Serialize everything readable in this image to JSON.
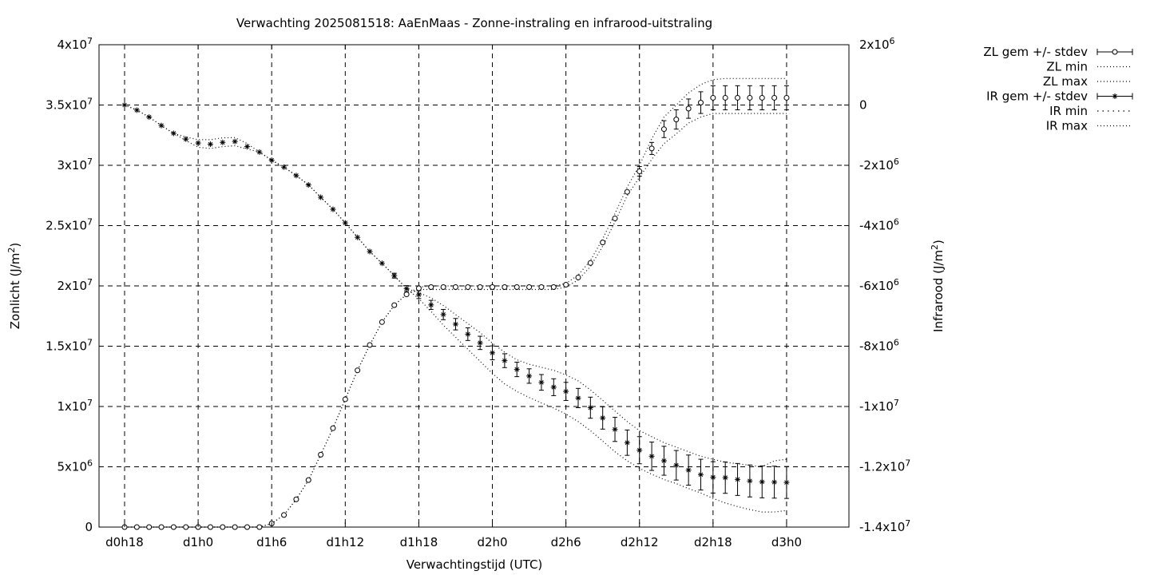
{
  "chart_data": {
    "type": "line",
    "title": "Verwachting 2025081518: AaEnMaas - Zonne-instraling en infrarood-uitstraling",
    "xlabel": "Verwachtingstijd (UTC)",
    "ylabel": "Zonlicht (J/m²)",
    "y2label": "Infrarood (J/m²)",
    "xlim": [
      0,
      57
    ],
    "ylim": [
      0,
      40000000
    ],
    "y2lim": [
      -14000000,
      2000000
    ],
    "x_ticks": [
      {
        "x": 0,
        "label": "d0h18"
      },
      {
        "x": 6,
        "label": "d1h0"
      },
      {
        "x": 12,
        "label": "d1h6"
      },
      {
        "x": 18,
        "label": "d1h12"
      },
      {
        "x": 24,
        "label": "d1h18"
      },
      {
        "x": 30,
        "label": "d2h0"
      },
      {
        "x": 36,
        "label": "d2h6"
      },
      {
        "x": 42,
        "label": "d2h12"
      },
      {
        "x": 48,
        "label": "d2h18"
      },
      {
        "x": 54,
        "label": "d3h0"
      }
    ],
    "y_ticks": [
      {
        "v": 0,
        "base": "0",
        "exp": ""
      },
      {
        "v": 5000000,
        "base": "5x10",
        "exp": "6"
      },
      {
        "v": 10000000,
        "base": "1x10",
        "exp": "7"
      },
      {
        "v": 15000000,
        "base": "1.5x10",
        "exp": "7"
      },
      {
        "v": 20000000,
        "base": "2x10",
        "exp": "7"
      },
      {
        "v": 25000000,
        "base": "2.5x10",
        "exp": "7"
      },
      {
        "v": 30000000,
        "base": "3x10",
        "exp": "7"
      },
      {
        "v": 35000000,
        "base": "3.5x10",
        "exp": "7"
      },
      {
        "v": 40000000,
        "base": "4x10",
        "exp": "7"
      }
    ],
    "y2_ticks": [
      {
        "v": -14000000,
        "base": "-1.4x10",
        "exp": "7"
      },
      {
        "v": -12000000,
        "base": "-1.2x10",
        "exp": "7"
      },
      {
        "v": -10000000,
        "base": "-1x10",
        "exp": "7"
      },
      {
        "v": -8000000,
        "base": "-8x10",
        "exp": "6"
      },
      {
        "v": -6000000,
        "base": "-6x10",
        "exp": "6"
      },
      {
        "v": -4000000,
        "base": "-4x10",
        "exp": "6"
      },
      {
        "v": -2000000,
        "base": "-2x10",
        "exp": "6"
      },
      {
        "v": 0,
        "base": "0",
        "exp": ""
      },
      {
        "v": 2000000,
        "base": "2x10",
        "exp": "6"
      }
    ],
    "grid": true,
    "legend_position": "outside top-right",
    "legend": [
      {
        "label": "ZL gem +/- stdev",
        "kind": "errbar-circle"
      },
      {
        "label": "ZL min",
        "kind": "dotted"
      },
      {
        "label": "ZL max",
        "kind": "dotted"
      },
      {
        "label": "IR gem +/- stdev",
        "kind": "errbar-star"
      },
      {
        "label": "IR min",
        "kind": "dotted-coarse"
      },
      {
        "label": "IR max",
        "kind": "dotted"
      }
    ],
    "x": [
      0,
      1,
      2,
      3,
      4,
      5,
      6,
      7,
      8,
      9,
      10,
      11,
      12,
      13,
      14,
      15,
      16,
      17,
      18,
      19,
      20,
      21,
      22,
      23,
      24,
      25,
      26,
      27,
      28,
      29,
      30,
      31,
      32,
      33,
      34,
      35,
      36,
      37,
      38,
      39,
      40,
      41,
      42,
      43,
      44,
      45,
      46,
      47,
      48,
      49,
      50,
      51,
      52,
      53,
      54
    ],
    "series": [
      {
        "name": "ZL gem +/- stdev",
        "axis": "y",
        "values": [
          0,
          0,
          0,
          0,
          0,
          0,
          0,
          0,
          0,
          0,
          0,
          0,
          300000,
          1000000,
          2300000,
          3900000,
          6000000,
          8200000,
          10600000,
          13000000,
          15100000,
          17000000,
          18400000,
          19300000,
          19800000,
          19900000,
          19900000,
          19900000,
          19900000,
          19900000,
          19900000,
          19900000,
          19900000,
          19900000,
          19900000,
          19900000,
          20100000,
          20700000,
          21900000,
          23600000,
          25600000,
          27800000,
          29500000,
          31400000,
          33000000,
          33800000,
          34700000,
          35200000,
          35600000,
          35600000,
          35600000,
          35600000,
          35600000,
          35600000,
          35600000
        ],
        "stdev": [
          0,
          0,
          0,
          0,
          0,
          0,
          0,
          0,
          0,
          0,
          0,
          0,
          0,
          0,
          0,
          0,
          0,
          0,
          0,
          0,
          0,
          0,
          0,
          0,
          0,
          0,
          0,
          0,
          0,
          0,
          0,
          0,
          0,
          0,
          0,
          0,
          0,
          0,
          0,
          0,
          0,
          0,
          400000,
          500000,
          700000,
          800000,
          800000,
          900000,
          1000000,
          1000000,
          1000000,
          1000000,
          1000000,
          1000000,
          1000000
        ]
      },
      {
        "name": "ZL min",
        "axis": "y",
        "values": [
          0,
          0,
          0,
          0,
          0,
          0,
          0,
          0,
          0,
          0,
          0,
          0,
          300000,
          1000000,
          2300000,
          3900000,
          6000000,
          8200000,
          10600000,
          13000000,
          15100000,
          17000000,
          18400000,
          19300000,
          19700000,
          19700000,
          19700000,
          19700000,
          19700000,
          19700000,
          19700000,
          19700000,
          19700000,
          19700000,
          19700000,
          19700000,
          19900000,
          20500000,
          21600000,
          23300000,
          25300000,
          27500000,
          29000000,
          30500000,
          31800000,
          32600000,
          33500000,
          34000000,
          34300000,
          34300000,
          34300000,
          34300000,
          34300000,
          34300000,
          34300000
        ]
      },
      {
        "name": "ZL max",
        "axis": "y",
        "values": [
          0,
          0,
          0,
          0,
          0,
          0,
          0,
          0,
          0,
          0,
          0,
          0,
          300000,
          1000000,
          2300000,
          3900000,
          6000000,
          8200000,
          10600000,
          13000000,
          15100000,
          17000000,
          18400000,
          19300000,
          19900000,
          20000000,
          20000000,
          20000000,
          20000000,
          20000000,
          20000000,
          20000000,
          20000000,
          20000000,
          20000000,
          20000000,
          20200000,
          20900000,
          22100000,
          23900000,
          26000000,
          28200000,
          30000000,
          32200000,
          34000000,
          35000000,
          36000000,
          36700000,
          37100000,
          37200000,
          37200000,
          37200000,
          37200000,
          37200000,
          37200000
        ]
      },
      {
        "name": "IR gem +/- stdev",
        "axis": "y2",
        "values": [
          0,
          -170000,
          -400000,
          -680000,
          -940000,
          -1130000,
          -1260000,
          -1300000,
          -1240000,
          -1210000,
          -1380000,
          -1560000,
          -1830000,
          -2060000,
          -2340000,
          -2650000,
          -3060000,
          -3460000,
          -3910000,
          -4390000,
          -4860000,
          -5250000,
          -5660000,
          -6090000,
          -6290000,
          -6630000,
          -6950000,
          -7270000,
          -7600000,
          -7890000,
          -8220000,
          -8480000,
          -8770000,
          -8990000,
          -9200000,
          -9360000,
          -9500000,
          -9720000,
          -10040000,
          -10380000,
          -10760000,
          -11200000,
          -11450000,
          -11650000,
          -11800000,
          -11950000,
          -12110000,
          -12260000,
          -12350000,
          -12360000,
          -12420000,
          -12470000,
          -12500000,
          -12510000,
          -12520000
        ],
        "stdev": [
          0,
          0,
          0,
          0,
          0,
          0,
          0,
          0,
          0,
          0,
          0,
          0,
          0,
          0,
          0,
          0,
          0,
          0,
          0,
          0,
          0,
          0,
          80000,
          100000,
          130000,
          150000,
          170000,
          190000,
          210000,
          220000,
          230000,
          230000,
          240000,
          240000,
          260000,
          280000,
          300000,
          320000,
          350000,
          370000,
          400000,
          420000,
          450000,
          470000,
          480000,
          490000,
          500000,
          510000,
          520000,
          520000,
          530000,
          530000,
          530000,
          530000,
          530000
        ]
      },
      {
        "name": "IR min",
        "axis": "y2",
        "values": [
          0,
          -170000,
          -400000,
          -680000,
          -940000,
          -1180000,
          -1400000,
          -1440000,
          -1380000,
          -1350000,
          -1460000,
          -1560000,
          -1830000,
          -2060000,
          -2340000,
          -2650000,
          -3060000,
          -3460000,
          -3910000,
          -4390000,
          -4860000,
          -5250000,
          -5660000,
          -6090000,
          -6420000,
          -6850000,
          -7300000,
          -7700000,
          -8100000,
          -8500000,
          -8900000,
          -9250000,
          -9500000,
          -9700000,
          -9880000,
          -10050000,
          -10250000,
          -10500000,
          -10800000,
          -11150000,
          -11500000,
          -11800000,
          -12050000,
          -12250000,
          -12420000,
          -12560000,
          -12720000,
          -12870000,
          -13050000,
          -13200000,
          -13320000,
          -13420000,
          -13500000,
          -13500000,
          -13450000
        ]
      },
      {
        "name": "IR max",
        "axis": "y2",
        "values": [
          0,
          -170000,
          -400000,
          -680000,
          -940000,
          -1060000,
          -1150000,
          -1150000,
          -1090000,
          -1080000,
          -1280000,
          -1560000,
          -1830000,
          -2060000,
          -2340000,
          -2650000,
          -3060000,
          -3460000,
          -3910000,
          -4390000,
          -4860000,
          -5250000,
          -5660000,
          -6090000,
          -6220000,
          -6400000,
          -6650000,
          -6950000,
          -7250000,
          -7550000,
          -7900000,
          -8200000,
          -8450000,
          -8600000,
          -8700000,
          -8800000,
          -8950000,
          -9150000,
          -9450000,
          -9800000,
          -10150000,
          -10500000,
          -10800000,
          -11000000,
          -11200000,
          -11350000,
          -11500000,
          -11650000,
          -11750000,
          -11850000,
          -11900000,
          -11950000,
          -12000000,
          -11800000,
          -11750000
        ]
      }
    ]
  }
}
